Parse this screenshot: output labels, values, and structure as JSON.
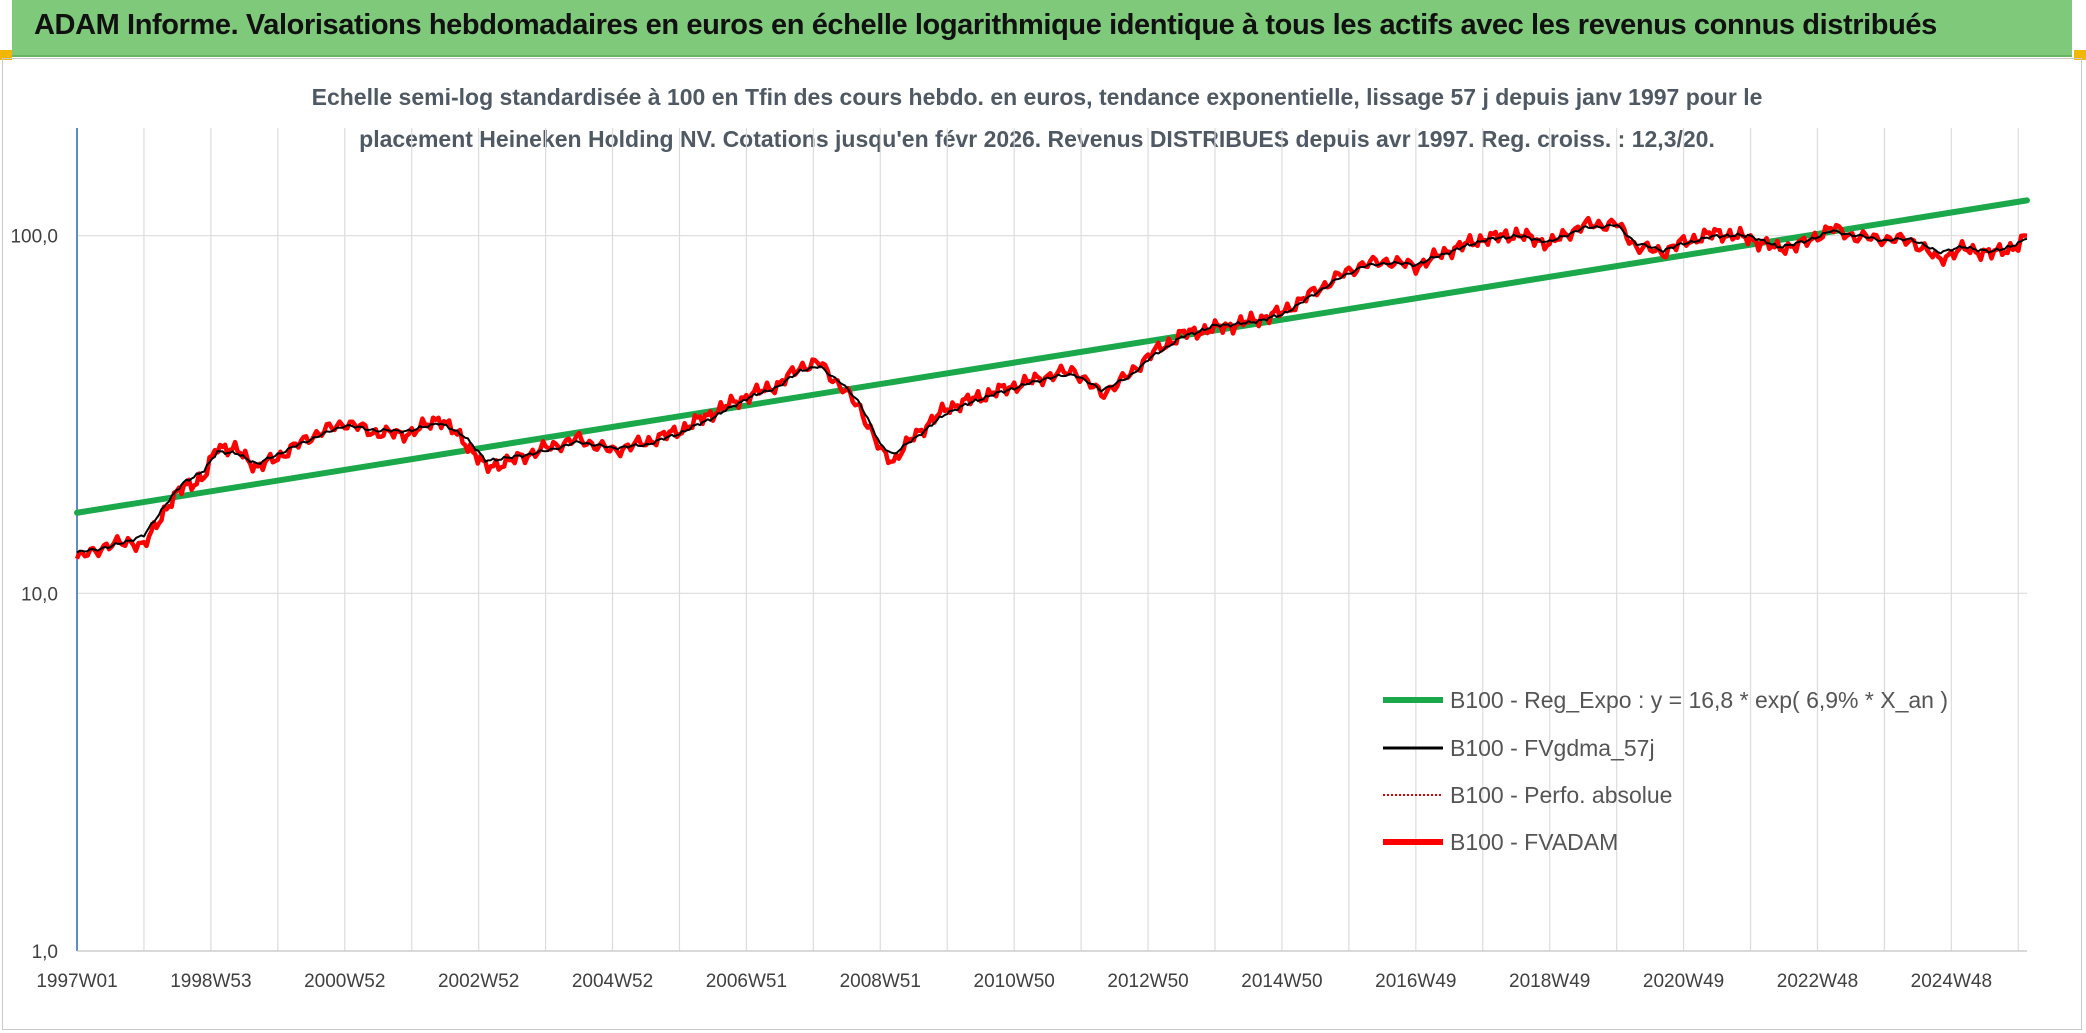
{
  "header": {
    "title": "ADAM Informe. Valorisations hebdomadaires en euros en échelle logarithmique identique à tous les actifs avec les revenus connus distribués"
  },
  "colors": {
    "header_bg": "#7ec97a",
    "corner_accent": "#f2b705",
    "regression": "#1aa84b",
    "moving_average": "#000000",
    "valuation": "#ff0000",
    "gridline": "#dcdcdc",
    "axis": "#3f6fb6"
  },
  "chart_data": {
    "type": "line",
    "title_line1": "Echelle semi-log standardisée à 100 en Tfin des cours hebdo. en euros, tendance exponentielle, lissage 57 j depuis janv 1997 pour le",
    "title_line2": "placement Heineken Holding NV. Cotations jusqu'en févr 2026. Revenus DISTRIBUES depuis avr 1997. Reg. croiss. : 12,3/20.",
    "yscale": "log",
    "ylim": [
      1,
      200
    ],
    "y_ticks": [
      {
        "value": 1,
        "label": "1,0"
      },
      {
        "value": 10,
        "label": "10,0"
      },
      {
        "value": 100,
        "label": "100,0"
      }
    ],
    "xlim": [
      1997.0,
      2026.13
    ],
    "x_ticks": [
      {
        "x": 1997.0,
        "label": "1997W01"
      },
      {
        "x": 1999.0,
        "label": "1998W53"
      },
      {
        "x": 2001.0,
        "label": "2000W52"
      },
      {
        "x": 2003.0,
        "label": "2002W52"
      },
      {
        "x": 2005.0,
        "label": "2004W52"
      },
      {
        "x": 2007.0,
        "label": "2006W51"
      },
      {
        "x": 2009.0,
        "label": "2008W51"
      },
      {
        "x": 2011.0,
        "label": "2010W50"
      },
      {
        "x": 2013.0,
        "label": "2012W50"
      },
      {
        "x": 2015.0,
        "label": "2014W50"
      },
      {
        "x": 2017.0,
        "label": "2016W49"
      },
      {
        "x": 2019.0,
        "label": "2018W49"
      },
      {
        "x": 2021.0,
        "label": "2020W49"
      },
      {
        "x": 2023.0,
        "label": "2022W48"
      },
      {
        "x": 2025.0,
        "label": "2024W48"
      }
    ],
    "grid": true,
    "legend_position": "bottom-right",
    "series": [
      {
        "name": "B100 - Reg_Expo : y = 16,8 * exp( 6,9% *  X_an )",
        "style": "thick-line",
        "color": "#1aa84b",
        "points": [
          [
            1997.0,
            16.8
          ],
          [
            2026.13,
            125.5
          ]
        ]
      },
      {
        "name": "B100 - FVgdma_57j",
        "style": "line",
        "color": "#000000",
        "points": [
          [
            1997.0,
            13.0
          ],
          [
            1997.5,
            13.5
          ],
          [
            1998.0,
            14.5
          ],
          [
            1998.3,
            17.5
          ],
          [
            1998.6,
            20.5
          ],
          [
            1998.9,
            22.0
          ],
          [
            1999.1,
            25.0
          ],
          [
            1999.4,
            24.5
          ],
          [
            1999.7,
            23.0
          ],
          [
            2000.0,
            24.5
          ],
          [
            2000.5,
            27.0
          ],
          [
            2001.0,
            29.5
          ],
          [
            2001.5,
            28.5
          ],
          [
            2002.0,
            28.5
          ],
          [
            2002.4,
            30.0
          ],
          [
            2002.8,
            27.5
          ],
          [
            2003.1,
            23.5
          ],
          [
            2003.5,
            24.0
          ],
          [
            2004.0,
            25.0
          ],
          [
            2004.5,
            26.5
          ],
          [
            2005.0,
            25.5
          ],
          [
            2005.5,
            26.0
          ],
          [
            2006.0,
            28.0
          ],
          [
            2006.5,
            31.0
          ],
          [
            2007.0,
            35.0
          ],
          [
            2007.5,
            38.0
          ],
          [
            2007.8,
            42.0
          ],
          [
            2008.1,
            43.0
          ],
          [
            2008.4,
            39.0
          ],
          [
            2008.7,
            34.0
          ],
          [
            2009.0,
            26.0
          ],
          [
            2009.2,
            24.5
          ],
          [
            2009.5,
            27.0
          ],
          [
            2010.0,
            32.0
          ],
          [
            2010.5,
            35.0
          ],
          [
            2011.0,
            37.5
          ],
          [
            2011.5,
            40.0
          ],
          [
            2011.9,
            41.0
          ],
          [
            2012.3,
            37.0
          ],
          [
            2012.7,
            40.0
          ],
          [
            2013.0,
            45.0
          ],
          [
            2013.5,
            52.0
          ],
          [
            2014.0,
            56.0
          ],
          [
            2014.5,
            57.0
          ],
          [
            2015.0,
            60.0
          ],
          [
            2015.4,
            67.0
          ],
          [
            2015.8,
            75.0
          ],
          [
            2016.2,
            82.0
          ],
          [
            2016.6,
            84.0
          ],
          [
            2017.0,
            83.0
          ],
          [
            2017.5,
            90.0
          ],
          [
            2018.0,
            97.0
          ],
          [
            2018.5,
            100.0
          ],
          [
            2019.0,
            96.0
          ],
          [
            2019.5,
            105.0
          ],
          [
            2020.0,
            107.0
          ],
          [
            2020.3,
            95.0
          ],
          [
            2020.7,
            91.0
          ],
          [
            2021.0,
            95.0
          ],
          [
            2021.5,
            100.0
          ],
          [
            2022.0,
            100.0
          ],
          [
            2022.4,
            93.0
          ],
          [
            2022.8,
            96.0
          ],
          [
            2023.2,
            103.0
          ],
          [
            2023.6,
            100.0
          ],
          [
            2024.0,
            97.0
          ],
          [
            2024.4,
            98.0
          ],
          [
            2024.8,
            90.0
          ],
          [
            2025.2,
            93.0
          ],
          [
            2025.6,
            90.0
          ],
          [
            2026.0,
            95.0
          ],
          [
            2026.13,
            98.0
          ]
        ]
      },
      {
        "name": "B100 - Perfo. absolue",
        "style": "dotted",
        "color": "#e00000"
      },
      {
        "name": "B100 - FVADAM",
        "style": "thick-line",
        "color": "#ff0000",
        "points": [
          [
            1997.0,
            12.5
          ],
          [
            1997.4,
            13.5
          ],
          [
            1997.8,
            14.0
          ],
          [
            1998.0,
            13.5
          ],
          [
            1998.3,
            17.0
          ],
          [
            1998.6,
            20.0
          ],
          [
            1998.9,
            21.0
          ],
          [
            1999.1,
            26.0
          ],
          [
            1999.4,
            25.0
          ],
          [
            1999.7,
            22.5
          ],
          [
            2000.0,
            24.0
          ],
          [
            2000.5,
            27.5
          ],
          [
            2001.0,
            30.0
          ],
          [
            2001.5,
            28.0
          ],
          [
            2002.0,
            28.0
          ],
          [
            2002.4,
            31.0
          ],
          [
            2002.8,
            26.5
          ],
          [
            2003.1,
            22.5
          ],
          [
            2003.5,
            23.5
          ],
          [
            2004.0,
            25.5
          ],
          [
            2004.5,
            27.0
          ],
          [
            2005.0,
            25.0
          ],
          [
            2005.5,
            26.5
          ],
          [
            2006.0,
            28.5
          ],
          [
            2006.5,
            32.0
          ],
          [
            2007.0,
            35.5
          ],
          [
            2007.5,
            38.5
          ],
          [
            2007.8,
            43.0
          ],
          [
            2008.1,
            44.0
          ],
          [
            2008.4,
            38.0
          ],
          [
            2008.7,
            33.0
          ],
          [
            2009.0,
            25.0
          ],
          [
            2009.2,
            23.5
          ],
          [
            2009.5,
            27.5
          ],
          [
            2010.0,
            33.0
          ],
          [
            2010.5,
            35.5
          ],
          [
            2011.0,
            38.0
          ],
          [
            2011.5,
            40.5
          ],
          [
            2011.9,
            42.0
          ],
          [
            2012.3,
            36.0
          ],
          [
            2012.7,
            40.5
          ],
          [
            2013.0,
            46.0
          ],
          [
            2013.5,
            53.0
          ],
          [
            2014.0,
            55.0
          ],
          [
            2014.5,
            57.5
          ],
          [
            2015.0,
            61.0
          ],
          [
            2015.4,
            68.0
          ],
          [
            2015.8,
            76.0
          ],
          [
            2016.2,
            83.0
          ],
          [
            2016.6,
            85.0
          ],
          [
            2017.0,
            82.0
          ],
          [
            2017.5,
            91.0
          ],
          [
            2018.0,
            98.0
          ],
          [
            2018.5,
            101.0
          ],
          [
            2019.0,
            95.0
          ],
          [
            2019.5,
            107.0
          ],
          [
            2020.0,
            108.0
          ],
          [
            2020.3,
            93.0
          ],
          [
            2020.7,
            90.0
          ],
          [
            2021.0,
            96.0
          ],
          [
            2021.5,
            102.0
          ],
          [
            2022.0,
            98.0
          ],
          [
            2022.4,
            92.0
          ],
          [
            2022.8,
            95.0
          ],
          [
            2023.2,
            105.0
          ],
          [
            2023.6,
            99.0
          ],
          [
            2024.0,
            98.0
          ],
          [
            2024.4,
            97.0
          ],
          [
            2024.8,
            86.0
          ],
          [
            2025.2,
            92.0
          ],
          [
            2025.6,
            89.0
          ],
          [
            2026.0,
            94.0
          ],
          [
            2026.13,
            100.0
          ]
        ]
      }
    ]
  }
}
